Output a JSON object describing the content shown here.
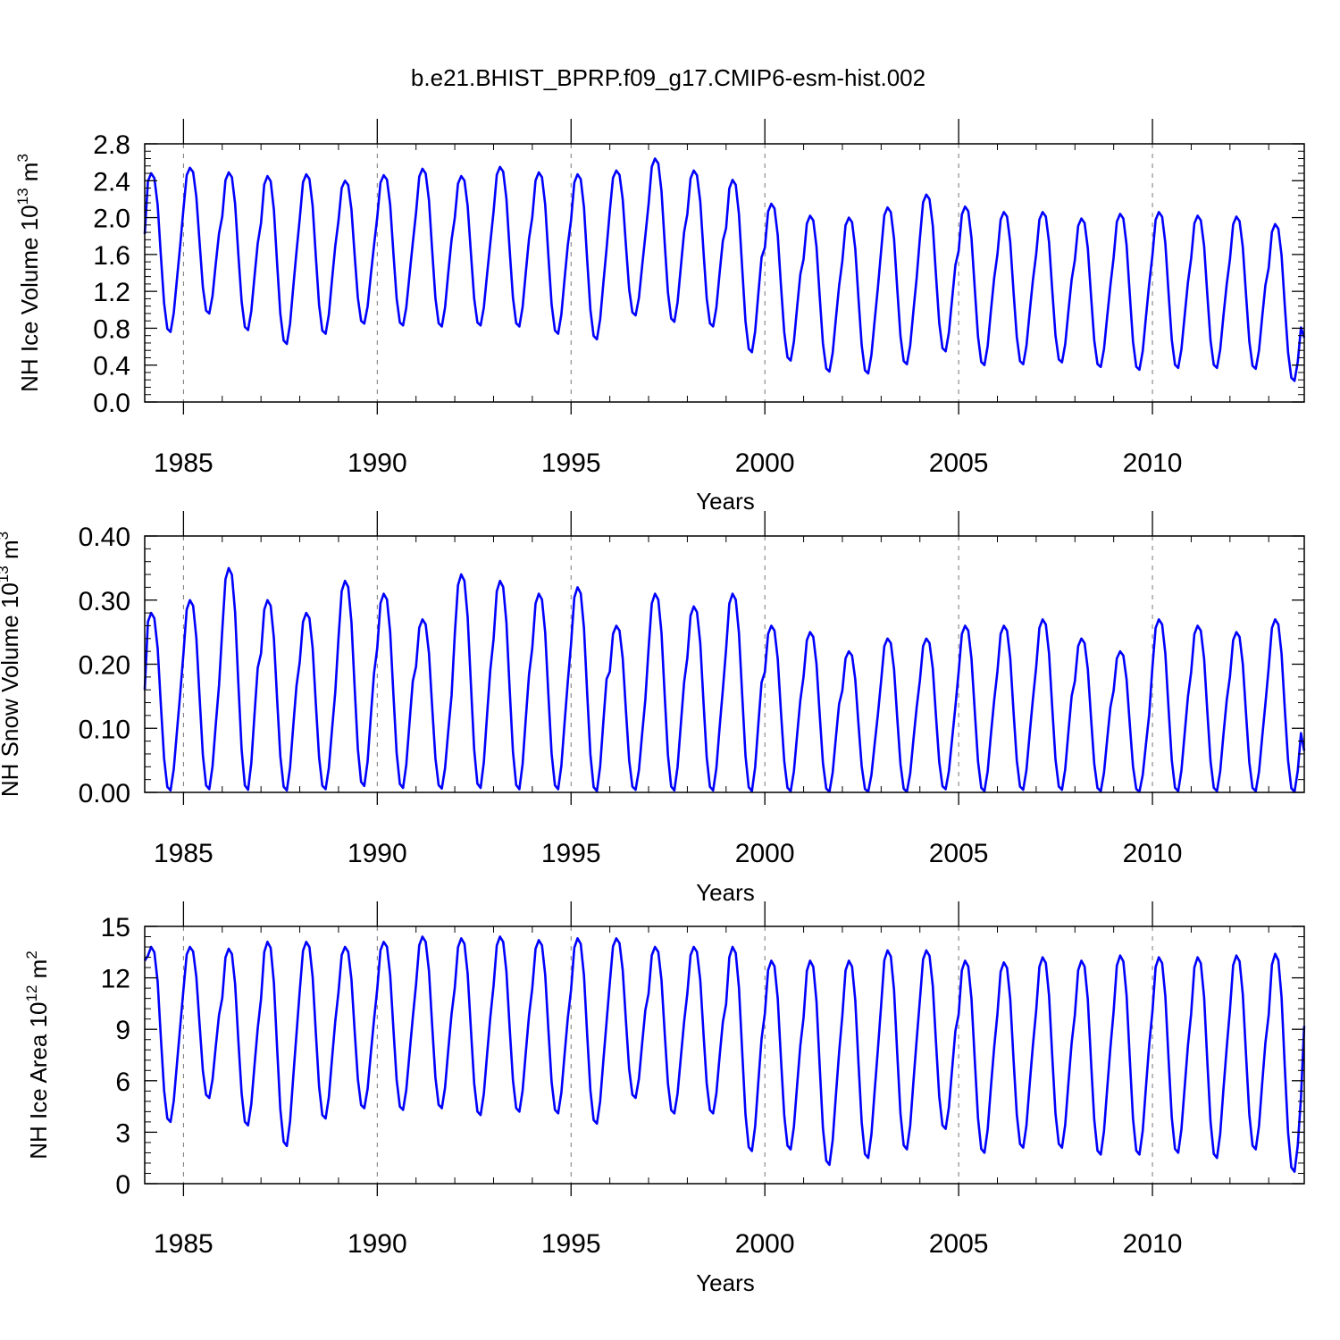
{
  "title": "b.e21.BHIST_BPRP.f09_g17.CMIP6-esm-hist.002",
  "colors": {
    "series": "#0000ff",
    "axis": "#000000",
    "grid": "#777777"
  },
  "chart_data": [
    {
      "type": "line",
      "title": "b.e21.BHIST_BPRP.f09_g17.CMIP6-esm-hist.002",
      "xlabel": "Years",
      "ylabel": {
        "base": "NH Ice Volume 10",
        "exp": "13",
        "unit": " m",
        "unit_exp": "3"
      },
      "xlim": [
        1984.0,
        2013.917
      ],
      "ylim": [
        0,
        2.8
      ],
      "xticks": [
        1985,
        1990,
        1995,
        2000,
        2005,
        2010
      ],
      "xtick_labels": [
        "1985",
        "1990",
        "1995",
        "2000",
        "2005",
        "2010"
      ],
      "yticks": [
        0,
        0.4,
        0.8,
        1.2,
        1.6,
        2.0,
        2.4,
        2.8
      ],
      "ytick_labels": [
        "0.0",
        "0.4",
        "0.8",
        "1.2",
        "1.6",
        "2.0",
        "2.4",
        "2.8"
      ],
      "grid": "vertical dashed at major x ticks",
      "series": [
        {
          "name": "NH Ice Volume",
          "start": 1984.0,
          "step": 0.08333,
          "maxima": [
            2.48,
            2.54,
            2.49,
            2.45,
            2.47,
            2.4,
            2.46,
            2.53,
            2.45,
            2.55,
            2.49,
            2.47,
            2.51,
            2.64,
            2.51,
            2.41,
            2.15,
            2.02,
            2.0,
            2.11,
            2.25,
            2.12,
            2.06,
            2.06,
            1.99,
            2.04,
            2.06,
            2.02,
            2.01,
            1.93
          ],
          "minima": [
            0.76,
            0.96,
            0.78,
            0.63,
            0.74,
            0.85,
            0.83,
            0.82,
            0.83,
            0.82,
            0.74,
            0.68,
            0.94,
            0.87,
            0.82,
            0.54,
            0.45,
            0.33,
            0.31,
            0.41,
            0.55,
            0.4,
            0.41,
            0.43,
            0.38,
            0.35,
            0.37,
            0.37,
            0.36,
            0.23
          ],
          "start_value": 1.82,
          "end_value": 0.7
        }
      ]
    },
    {
      "type": "line",
      "xlabel": "Years",
      "ylabel": {
        "base": "NH Snow Volume 10",
        "exp": "13",
        "unit": " m",
        "unit_exp": "3"
      },
      "xlim": [
        1984.0,
        2013.917
      ],
      "ylim": [
        0,
        0.4
      ],
      "xticks": [
        1985,
        1990,
        1995,
        2000,
        2005,
        2010
      ],
      "xtick_labels": [
        "1985",
        "1990",
        "1995",
        "2000",
        "2005",
        "2010"
      ],
      "yticks": [
        0,
        0.1,
        0.2,
        0.3,
        0.4
      ],
      "ytick_labels": [
        "0.00",
        "0.10",
        "0.20",
        "0.30",
        "0.40"
      ],
      "grid": "vertical dashed at major x ticks",
      "series": [
        {
          "name": "NH Snow Volume",
          "start": 1984.0,
          "step": 0.08333,
          "maxima": [
            0.28,
            0.3,
            0.35,
            0.3,
            0.28,
            0.33,
            0.31,
            0.27,
            0.34,
            0.33,
            0.31,
            0.32,
            0.26,
            0.31,
            0.29,
            0.31,
            0.26,
            0.25,
            0.22,
            0.24,
            0.24,
            0.26,
            0.26,
            0.27,
            0.24,
            0.22,
            0.27,
            0.26,
            0.25,
            0.27
          ],
          "minima": [
            0.003,
            0.005,
            0.004,
            0.003,
            0.005,
            0.01,
            0.007,
            0.006,
            0.007,
            0.005,
            0.005,
            0.002,
            0.004,
            0.003,
            0.003,
            0.002,
            0.002,
            0.001,
            0.001,
            0.001,
            0.005,
            0.002,
            0.004,
            0.004,
            0.002,
            0.001,
            0.002,
            0.002,
            0.002,
            0.001
          ],
          "start_value": 0.16,
          "end_value": 0.065
        }
      ]
    },
    {
      "type": "line",
      "xlabel": "Years",
      "ylabel": {
        "base": "NH Ice Area 10",
        "exp": "12",
        "unit": " m",
        "unit_exp": "2"
      },
      "xlim": [
        1984.0,
        2013.917
      ],
      "ylim": [
        0,
        15
      ],
      "xticks": [
        1985,
        1990,
        1995,
        2000,
        2005,
        2010
      ],
      "xtick_labels": [
        "1985",
        "1990",
        "1995",
        "2000",
        "2005",
        "2010"
      ],
      "yticks": [
        0,
        3,
        6,
        9,
        12,
        15
      ],
      "ytick_labels": [
        "0",
        "3",
        "6",
        "9",
        "12",
        "15"
      ],
      "grid": "vertical dashed at major x ticks",
      "series": [
        {
          "name": "NH Ice Area",
          "start": 1984.0,
          "step": 0.08333,
          "maxima": [
            13.8,
            13.8,
            13.7,
            14.1,
            14.1,
            13.8,
            14.1,
            14.4,
            14.3,
            14.4,
            14.2,
            14.3,
            14.3,
            13.8,
            13.8,
            13.8,
            13.0,
            13.0,
            13.0,
            13.6,
            13.6,
            13.0,
            12.9,
            13.2,
            13.0,
            13.3,
            13.2,
            13.2,
            13.3,
            13.4
          ],
          "minima": [
            3.6,
            5.0,
            3.4,
            2.2,
            3.8,
            4.4,
            4.3,
            4.4,
            4.0,
            4.2,
            4.1,
            3.5,
            5.0,
            4.1,
            4.1,
            1.9,
            2.0,
            1.1,
            1.5,
            2.0,
            3.2,
            1.8,
            2.1,
            2.1,
            1.7,
            1.7,
            1.8,
            1.5,
            2.0,
            0.7
          ],
          "start_value": 13.0,
          "end_value": 9.2
        }
      ]
    }
  ]
}
